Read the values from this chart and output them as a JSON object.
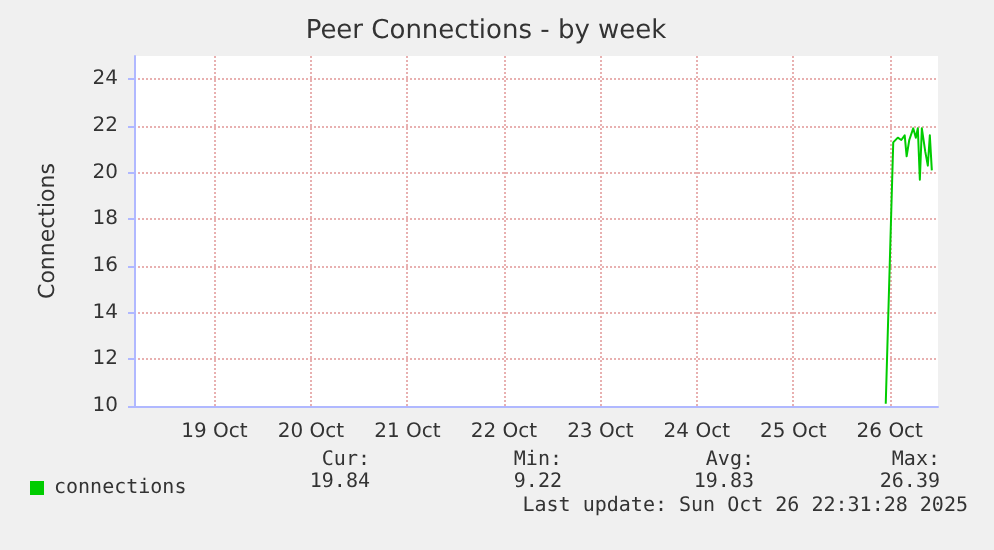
{
  "chart_data": {
    "type": "line",
    "title": "Peer Connections - by week",
    "ylabel": "Connections",
    "xlim": [
      "2025-10-18T16:00",
      "2025-10-27T00:00"
    ],
    "xticks": [
      {
        "value": "2025-10-19T12:00",
        "label": "19 Oct"
      },
      {
        "value": "2025-10-20T12:00",
        "label": "20 Oct"
      },
      {
        "value": "2025-10-21T12:00",
        "label": "21 Oct"
      },
      {
        "value": "2025-10-22T12:00",
        "label": "22 Oct"
      },
      {
        "value": "2025-10-23T12:00",
        "label": "23 Oct"
      },
      {
        "value": "2025-10-24T12:00",
        "label": "24 Oct"
      },
      {
        "value": "2025-10-25T12:00",
        "label": "25 Oct"
      },
      {
        "value": "2025-10-26T12:00",
        "label": "26 Oct"
      }
    ],
    "ylim": [
      10,
      25
    ],
    "yticks": [
      10,
      12,
      14,
      16,
      18,
      20,
      22,
      24
    ],
    "grid": true,
    "legend": "bottom left",
    "marker": "none",
    "line_style": "solid",
    "series": [
      {
        "name": "connections",
        "color": "#00cc00",
        "x": [
          "2025-10-26T11:00",
          "2025-10-26T12:52",
          "2025-10-26T14:00",
          "2025-10-26T14:52",
          "2025-10-26T15:43",
          "2025-10-26T16:12",
          "2025-10-26T16:51",
          "2025-10-26T17:50",
          "2025-10-26T18:29",
          "2025-10-26T18:59",
          "2025-10-26T19:29",
          "2025-10-26T19:59",
          "2025-10-26T20:50",
          "2025-10-26T21:28",
          "2025-10-26T21:58",
          "2025-10-26T22:28"
        ],
        "values": [
          10.1,
          21.3,
          21.5,
          21.4,
          21.6,
          20.7,
          21.4,
          21.9,
          21.5,
          21.9,
          19.7,
          21.9,
          20.9,
          20.3,
          21.6,
          20.1
        ]
      }
    ],
    "annotations": [
      "Cur:",
      "Min:",
      "Avg:",
      "Max:",
      "19.84",
      "9.22",
      "19.83",
      "26.39",
      "Last update: Sun Oct 26 22:31:28 2025"
    ]
  }
}
